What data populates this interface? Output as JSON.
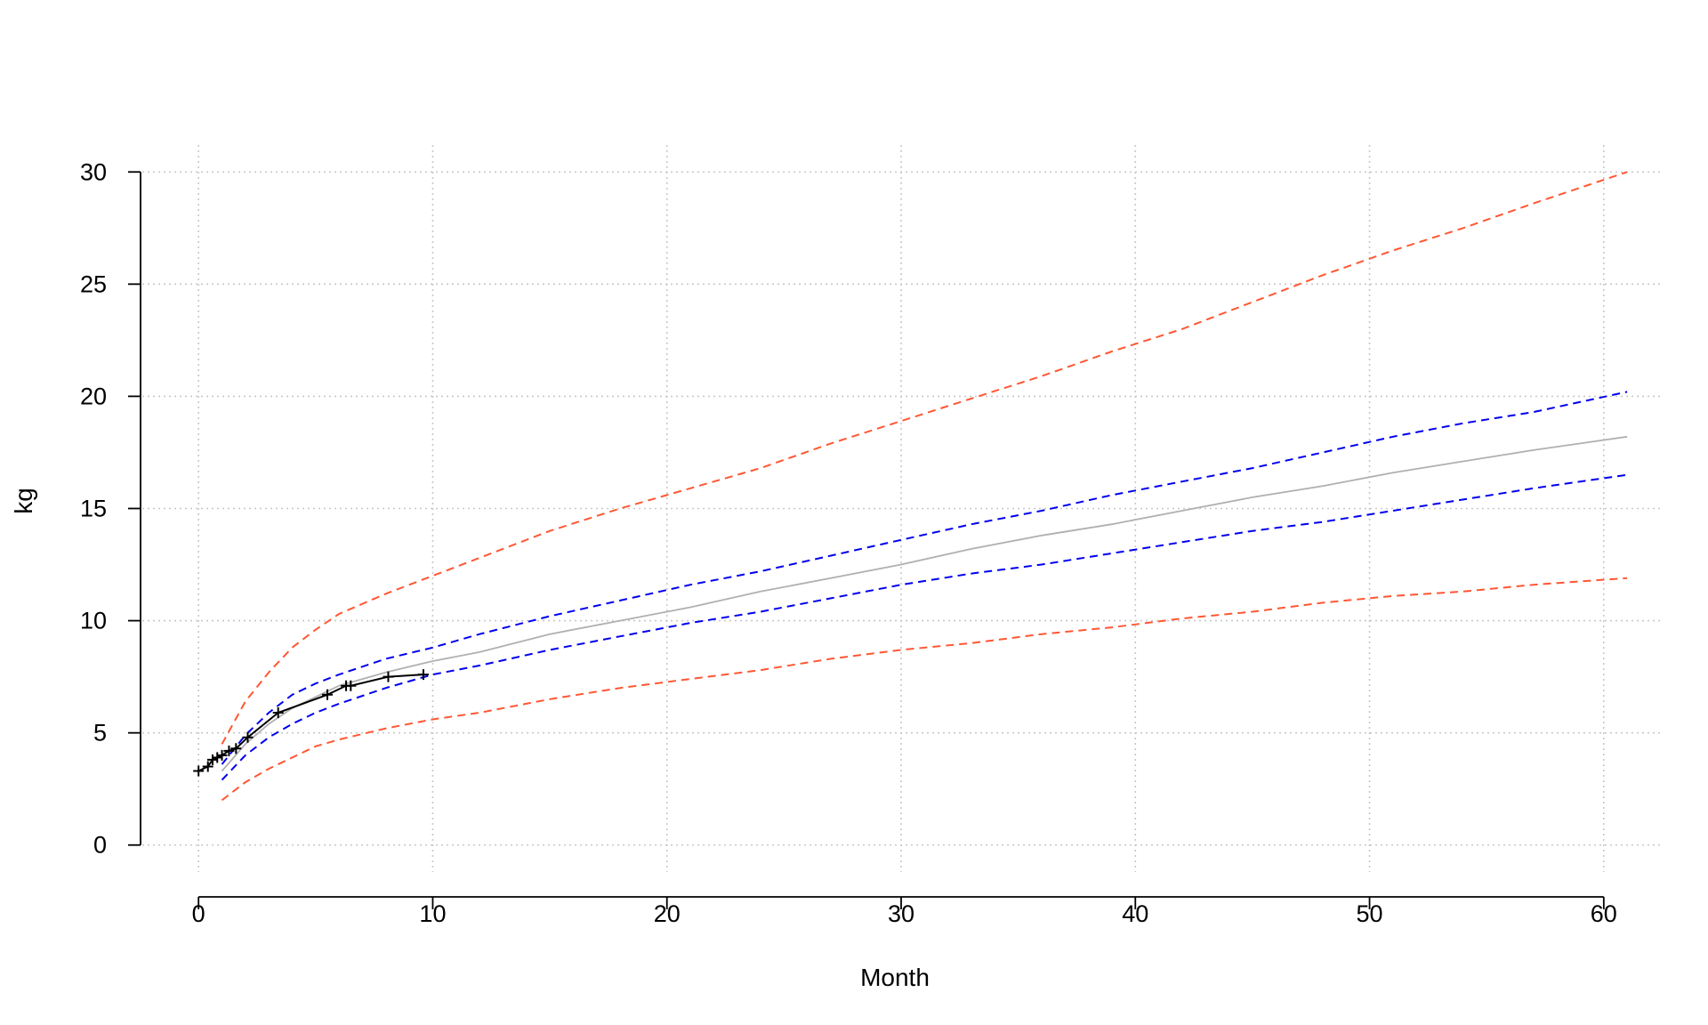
{
  "chart_data": {
    "type": "line",
    "title": "",
    "xlabel": "Month",
    "ylabel": "kg",
    "xlim": [
      -2.4,
      62.4
    ],
    "ylim": [
      -1.2,
      31.2
    ],
    "xticks": [
      0,
      10,
      20,
      30,
      40,
      50,
      60
    ],
    "yticks": [
      0,
      5,
      10,
      15,
      20,
      25,
      30
    ],
    "grid": true,
    "legend": "none",
    "colors": {
      "outer_band": "#FF5733",
      "inner_band": "#0000EE",
      "median": "#B0B0B0",
      "observed": "#000000",
      "grid": "#C8C8C8"
    },
    "series": [
      {
        "style": "dashed",
        "color": "#FF5733",
        "x": [
          1,
          2,
          3,
          4,
          5,
          6,
          8,
          10,
          12,
          15,
          18,
          21,
          24,
          27,
          30,
          33,
          36,
          39,
          42,
          45,
          48,
          51,
          54,
          57,
          61
        ],
        "y": [
          4.5,
          6.4,
          7.7,
          8.8,
          9.6,
          10.3,
          11.2,
          12.0,
          12.8,
          14.0,
          15.0,
          15.9,
          16.8,
          17.9,
          18.9,
          19.9,
          20.9,
          22.0,
          23.0,
          24.2,
          25.4,
          26.5,
          27.5,
          28.6,
          30.0
        ]
      },
      {
        "style": "dashed",
        "color": "#0000EE",
        "x": [
          1,
          2,
          3,
          4,
          5,
          6,
          8,
          10,
          12,
          15,
          18,
          21,
          24,
          27,
          30,
          33,
          36,
          39,
          42,
          45,
          48,
          51,
          54,
          57,
          61
        ],
        "y": [
          3.6,
          4.9,
          5.9,
          6.7,
          7.2,
          7.6,
          8.3,
          8.8,
          9.4,
          10.2,
          10.9,
          11.6,
          12.2,
          12.9,
          13.6,
          14.3,
          14.9,
          15.6,
          16.2,
          16.8,
          17.5,
          18.2,
          18.8,
          19.3,
          20.2
        ]
      },
      {
        "style": "solid",
        "color": "#B0B0B0",
        "x": [
          1,
          2,
          3,
          4,
          5,
          6,
          8,
          10,
          12,
          15,
          18,
          21,
          24,
          27,
          30,
          33,
          36,
          39,
          42,
          45,
          48,
          51,
          54,
          57,
          61
        ],
        "y": [
          3.3,
          4.5,
          5.4,
          6.1,
          6.6,
          7.1,
          7.7,
          8.2,
          8.6,
          9.4,
          10.0,
          10.6,
          11.3,
          11.9,
          12.5,
          13.2,
          13.8,
          14.3,
          14.9,
          15.5,
          16.0,
          16.6,
          17.1,
          17.6,
          18.2
        ]
      },
      {
        "style": "dashed",
        "color": "#0000EE",
        "x": [
          1,
          2,
          3,
          4,
          5,
          6,
          8,
          10,
          12,
          15,
          18,
          21,
          24,
          27,
          30,
          33,
          36,
          39,
          42,
          45,
          48,
          51,
          54,
          57,
          61
        ],
        "y": [
          2.9,
          4.0,
          4.8,
          5.4,
          5.9,
          6.3,
          7.0,
          7.6,
          8.0,
          8.7,
          9.3,
          9.9,
          10.4,
          11.0,
          11.6,
          12.1,
          12.5,
          13.0,
          13.5,
          14.0,
          14.4,
          14.9,
          15.4,
          15.9,
          16.5
        ]
      },
      {
        "style": "dashed",
        "color": "#FF5733",
        "x": [
          1,
          2,
          3,
          4,
          5,
          6,
          8,
          10,
          12,
          15,
          18,
          21,
          24,
          27,
          30,
          33,
          36,
          39,
          42,
          45,
          48,
          51,
          54,
          57,
          61
        ],
        "y": [
          2.0,
          2.8,
          3.4,
          3.9,
          4.4,
          4.7,
          5.2,
          5.6,
          5.9,
          6.5,
          7.0,
          7.4,
          7.8,
          8.3,
          8.7,
          9.0,
          9.4,
          9.7,
          10.1,
          10.4,
          10.8,
          11.1,
          11.3,
          11.6,
          11.9
        ]
      },
      {
        "style": "solid-with-markers",
        "color": "#000000",
        "x": [
          0,
          0.4,
          0.6,
          0.8,
          1.0,
          1.3,
          1.6,
          2.1,
          3.4,
          5.5,
          6.3,
          6.5,
          8.1,
          9.6
        ],
        "y": [
          3.3,
          3.5,
          3.8,
          3.9,
          4.0,
          4.2,
          4.3,
          4.8,
          5.9,
          6.7,
          7.1,
          7.1,
          7.5,
          7.6
        ]
      }
    ]
  }
}
